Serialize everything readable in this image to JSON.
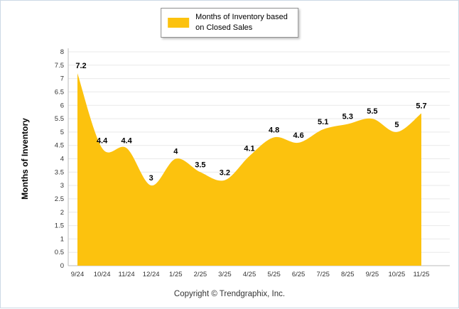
{
  "chart_data": {
    "type": "area",
    "title": "",
    "legend_line1": "Months of Inventory based",
    "legend_line2": "on Closed Sales",
    "legend_position": "top",
    "categories": [
      "9/24",
      "10/24",
      "11/24",
      "12/24",
      "1/25",
      "2/25",
      "3/25",
      "4/25",
      "5/25",
      "6/25",
      "7/25",
      "8/25",
      "9/25",
      "10/25",
      "11/25"
    ],
    "values": [
      7.2,
      4.4,
      4.4,
      3,
      4,
      3.5,
      3.2,
      4.1,
      4.8,
      4.6,
      5.1,
      5.3,
      5.5,
      5,
      5.7
    ],
    "point_labels": [
      "7.2",
      "4.4",
      "4.4",
      "3",
      "4",
      "3.5",
      "3.2",
      "4.1",
      "4.8",
      "4.6",
      "5.1",
      "5.3",
      "5.5",
      "5",
      "5.7"
    ],
    "xlabel": "",
    "ylabel": "Months of Inventory",
    "ylim": [
      0,
      8
    ],
    "yticks": [
      "0",
      "0.5",
      "1",
      "1.5",
      "2",
      "2.5",
      "3",
      "3.5",
      "4",
      "4.5",
      "5",
      "5.5",
      "6",
      "6.5",
      "7",
      "7.5",
      "8"
    ],
    "grid": true,
    "fill_color": "#FCC20E",
    "label_color": "#000000",
    "axis_text_color": "#333333",
    "grid_color": "#e9e9e9",
    "axis_line_color": "#bbbbbb"
  },
  "footer": {
    "copyright": "Copyright © Trendgraphix, Inc."
  }
}
